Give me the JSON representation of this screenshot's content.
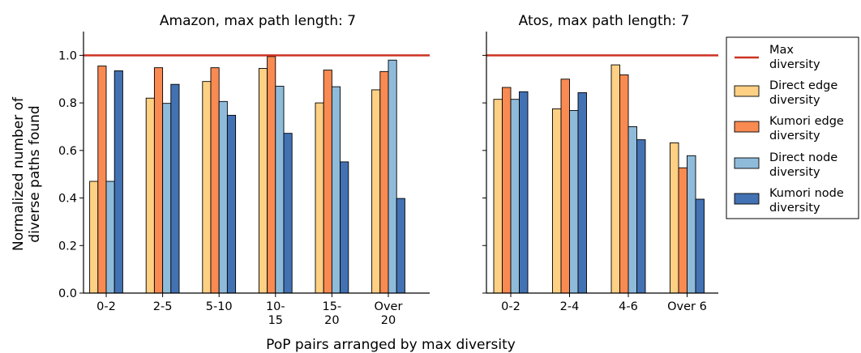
{
  "figure": {
    "ylabel_line1": "Normalized number of",
    "ylabel_line2": "diverse paths found",
    "xlabel": "PoP pairs arranged by max diversity",
    "max_line_color": "#cc3322"
  },
  "legend": {
    "items": [
      {
        "key": "max",
        "line1": "Max",
        "line2": "diversity",
        "color": "#cc3322"
      },
      {
        "key": "direct_edge",
        "line1": "Direct edge",
        "line2": "diversity",
        "color": "#fdd084"
      },
      {
        "key": "kumori_edge",
        "line1": "Kumori edge",
        "line2": "diversity",
        "color": "#f98a52"
      },
      {
        "key": "direct_node",
        "line1": "Direct node",
        "line2": "diversity",
        "color": "#8fbbdb"
      },
      {
        "key": "kumori_node",
        "line1": "Kumori node",
        "line2": "diversity",
        "color": "#4272b3"
      }
    ]
  },
  "chart_data": [
    {
      "type": "bar",
      "title": "Amazon, max path length: 7",
      "xlabel": "PoP pairs arranged by max diversity",
      "ylabel": "Normalized number of diverse paths found",
      "ylim": [
        0,
        1.1
      ],
      "yticks": [
        "0.0",
        "0.2",
        "0.4",
        "0.6",
        "0.8",
        "1.0"
      ],
      "categories": [
        "0-2",
        "2-5",
        "5-10",
        "10-\n15",
        "15-\n20",
        "Over\n20"
      ],
      "reference_line": {
        "name": "Max diversity",
        "value": 1.0
      },
      "series": [
        {
          "name": "Direct edge diversity",
          "values": [
            0.47,
            0.82,
            0.89,
            0.945,
            0.8,
            0.855
          ]
        },
        {
          "name": "Kumori edge diversity",
          "values": [
            0.955,
            0.948,
            0.948,
            0.995,
            0.938,
            0.932
          ]
        },
        {
          "name": "Direct node diversity",
          "values": [
            0.47,
            0.798,
            0.806,
            0.87,
            0.868,
            0.98
          ]
        },
        {
          "name": "Kumori node diversity",
          "values": [
            0.935,
            0.878,
            0.748,
            0.672,
            0.552,
            0.398
          ]
        }
      ]
    },
    {
      "type": "bar",
      "title": "Atos, max path length: 7",
      "xlabel": "PoP pairs arranged by max diversity",
      "ylim": [
        0,
        1.1
      ],
      "categories": [
        "0-2",
        "2-4",
        "4-6",
        "Over 6"
      ],
      "reference_line": {
        "name": "Max diversity",
        "value": 1.0
      },
      "series": [
        {
          "name": "Direct edge diversity",
          "values": [
            0.815,
            0.775,
            0.96,
            0.632
          ]
        },
        {
          "name": "Kumori edge diversity",
          "values": [
            0.865,
            0.9,
            0.918,
            0.527
          ]
        },
        {
          "name": "Direct node diversity",
          "values": [
            0.815,
            0.768,
            0.7,
            0.578
          ]
        },
        {
          "name": "Kumori node diversity",
          "values": [
            0.847,
            0.843,
            0.645,
            0.395
          ]
        }
      ]
    }
  ]
}
